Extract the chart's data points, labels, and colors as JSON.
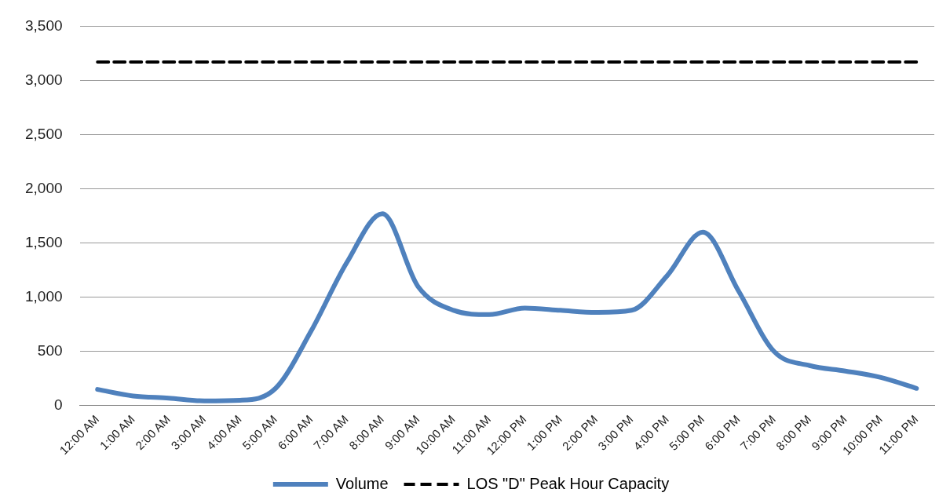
{
  "chart_data": {
    "type": "line",
    "categories": [
      "12:00 AM",
      "1:00 AM",
      "2:00 AM",
      "3:00 AM",
      "4:00 AM",
      "5:00 AM",
      "6:00 AM",
      "7:00 AM",
      "8:00 AM",
      "9:00 AM",
      "10:00 AM",
      "11:00 AM",
      "12:00 PM",
      "1:00 PM",
      "2:00 PM",
      "3:00 PM",
      "4:00 PM",
      "5:00 PM",
      "6:00 PM",
      "7:00 PM",
      "8:00 PM",
      "9:00 PM",
      "10:00 PM",
      "11:00 PM"
    ],
    "series": [
      {
        "name": "Volume",
        "color": "#4f81bd",
        "line_style": "solid",
        "values": [
          150,
          90,
          70,
          45,
          50,
          160,
          690,
          1320,
          1770,
          1100,
          880,
          840,
          900,
          880,
          860,
          880,
          1200,
          1600,
          1060,
          500,
          370,
          320,
          260,
          160
        ]
      },
      {
        "name": "LOS \"D\" Peak Hour Capacity",
        "color": "#000000",
        "line_style": "dashed",
        "values": [
          3170,
          3170,
          3170,
          3170,
          3170,
          3170,
          3170,
          3170,
          3170,
          3170,
          3170,
          3170,
          3170,
          3170,
          3170,
          3170,
          3170,
          3170,
          3170,
          3170,
          3170,
          3170,
          3170,
          3170
        ]
      }
    ],
    "ylim": [
      0,
      3500
    ],
    "yticks": [
      0,
      500,
      {
        "value": 1000,
        "label": "1,000"
      },
      {
        "value": 1500,
        "label": "1,500"
      },
      {
        "value": 2000,
        "label": "2,000"
      },
      {
        "value": 2500,
        "label": "2,500"
      },
      {
        "value": 3000,
        "label": "3,000"
      },
      {
        "value": 3500,
        "label": "3,500"
      }
    ],
    "grid": "y",
    "legend": "bottom",
    "marker": "none"
  }
}
